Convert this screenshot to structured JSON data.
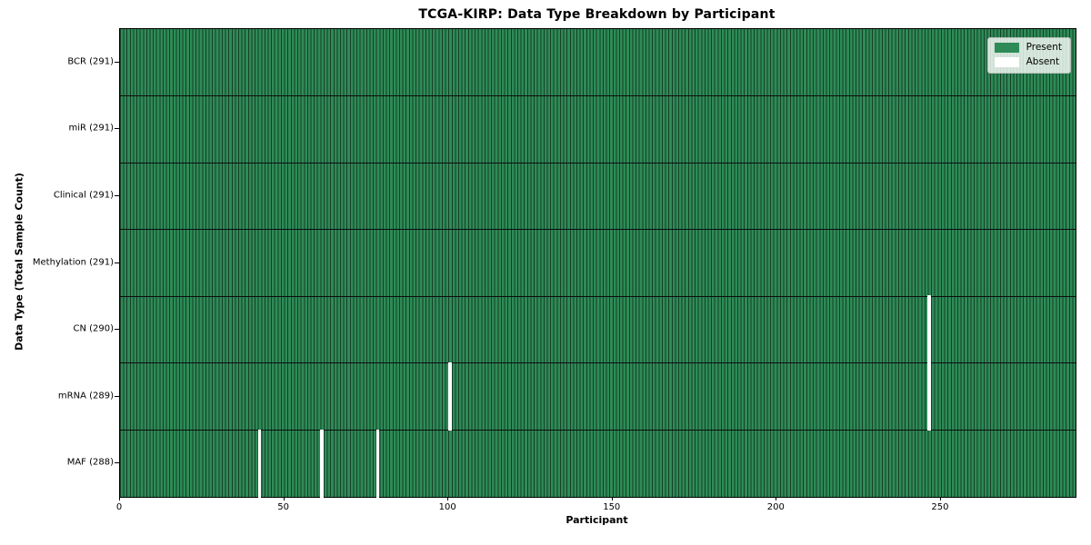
{
  "chart_data": {
    "type": "heatmap",
    "title": "TCGA-KIRP: Data Type Breakdown by Participant",
    "xlabel": "Participant",
    "ylabel": "Data Type (Total Sample Count)",
    "x_ticks": [
      0,
      50,
      100,
      150,
      200,
      250
    ],
    "x_range": [
      0,
      291
    ],
    "n_participants": 291,
    "present_color": "#2e8b57",
    "absent_color": "#ffffff",
    "cell_edge_color": "rgba(0,0,0,0.55)",
    "grid": "row-dividers",
    "legend_position": "upper-right",
    "legend": [
      {
        "label": "Present",
        "color": "#2e8b57"
      },
      {
        "label": "Absent",
        "color": "#ffffff"
      }
    ],
    "rows": [
      {
        "label": "BCR (291)",
        "data_type": "BCR",
        "count": 291,
        "absent_participants": []
      },
      {
        "label": "miR (291)",
        "data_type": "miR",
        "count": 291,
        "absent_participants": []
      },
      {
        "label": "Clinical (291)",
        "data_type": "Clinical",
        "count": 291,
        "absent_participants": []
      },
      {
        "label": "Methylation (291)",
        "data_type": "Methylation",
        "count": 291,
        "absent_participants": []
      },
      {
        "label": "CN (290)",
        "data_type": "CN",
        "count": 290,
        "absent_participants": [
          246
        ]
      },
      {
        "label": "mRNA (289)",
        "data_type": "mRNA",
        "count": 289,
        "absent_participants": [
          100,
          246
        ]
      },
      {
        "label": "MAF (288)",
        "data_type": "MAF",
        "count": 288,
        "absent_participants": [
          42,
          61,
          78
        ]
      }
    ]
  }
}
